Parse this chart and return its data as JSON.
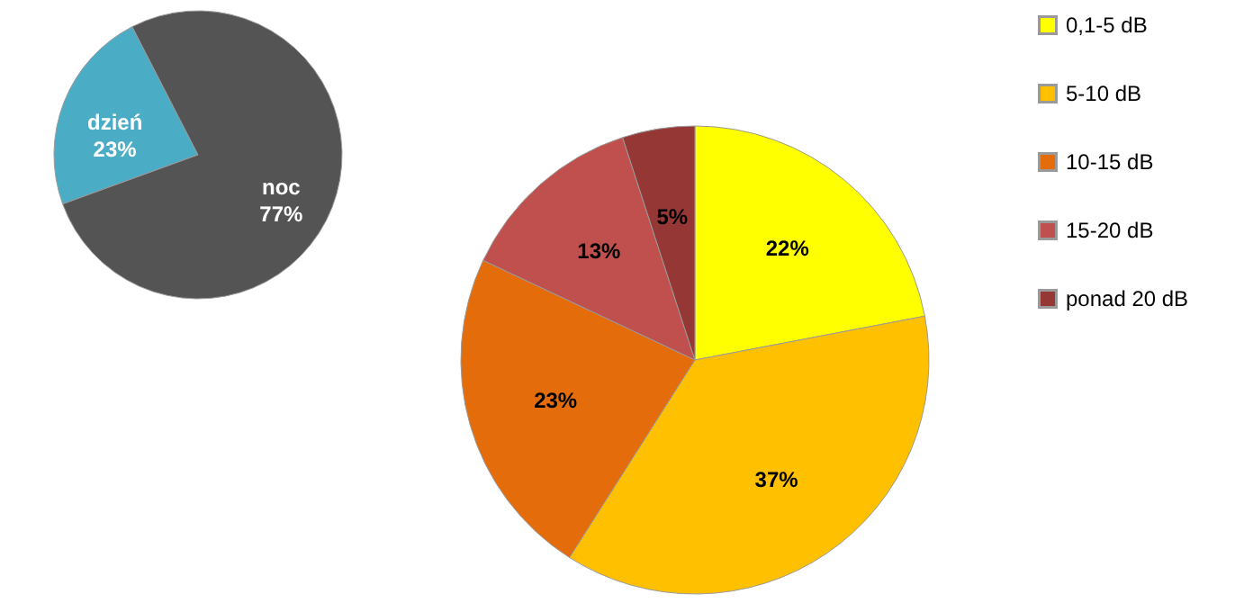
{
  "chart_data": [
    {
      "type": "pie",
      "categories": [
        "dzień",
        "noc"
      ],
      "values": [
        23,
        77
      ],
      "value_labels": [
        "23%",
        "77%"
      ],
      "colors": [
        "#4bacc6",
        "#545454"
      ],
      "legend": false
    },
    {
      "type": "pie",
      "categories": [
        "0,1-5 dB",
        "5-10 dB",
        "10-15 dB",
        "15-20 dB",
        "ponad 20 dB"
      ],
      "values": [
        22,
        37,
        23,
        13,
        5
      ],
      "value_labels": [
        "22%",
        "37%",
        "23%",
        "13%",
        "5%"
      ],
      "colors": [
        "#ffff00",
        "#ffc000",
        "#e46c0a",
        "#c0504d",
        "#953735"
      ],
      "legend": "right"
    }
  ]
}
